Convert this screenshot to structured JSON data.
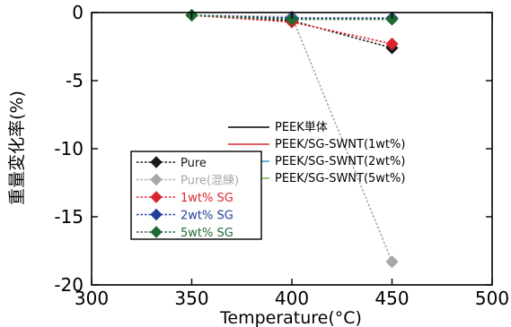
{
  "chart_data": {
    "type": "line",
    "xlabel": "Temperature(°C)",
    "ylabel": "重量変化率(%)",
    "xlim": [
      300,
      500
    ],
    "ylim": [
      -20,
      0
    ],
    "xticks": [
      "300",
      "350",
      "400",
      "450",
      "500"
    ],
    "yticks": [
      "0",
      "-5",
      "-10",
      "-15",
      "-20"
    ],
    "grid": false,
    "legend_placement": "center-left",
    "series": [
      {
        "name": "Pure",
        "color": "#1a1a1a",
        "x": [
          350,
          400,
          450
        ],
        "y": [
          -0.2,
          -0.6,
          -2.6
        ]
      },
      {
        "name": "Pure(混練)",
        "color": "#a8a8a8",
        "x": [
          350,
          400,
          450
        ],
        "y": [
          -0.2,
          -0.3,
          -18.3
        ]
      },
      {
        "name": "1wt% SG",
        "color": "#d9262e",
        "x": [
          350,
          400,
          450
        ],
        "y": [
          -0.2,
          -0.7,
          -2.3
        ]
      },
      {
        "name": "2wt% SG",
        "color": "#1f3f99",
        "x": [
          350,
          400,
          450
        ],
        "y": [
          -0.2,
          -0.4,
          -0.4
        ]
      },
      {
        "name": "5wt% SG",
        "color": "#1e6b35",
        "x": [
          350,
          400,
          450
        ],
        "y": [
          -0.2,
          -0.5,
          -0.5
        ]
      }
    ],
    "legend2": [
      {
        "name": "PEEK単体",
        "color": "#000000"
      },
      {
        "name": "PEEK/SG-SWNT(1wt%)",
        "color": "#d9262e"
      },
      {
        "name": "PEEK/SG-SWNT(2wt%)",
        "color": "#2aa3c9"
      },
      {
        "name": "PEEK/SG-SWNT(5wt%)",
        "color": "#7ab648"
      }
    ]
  }
}
